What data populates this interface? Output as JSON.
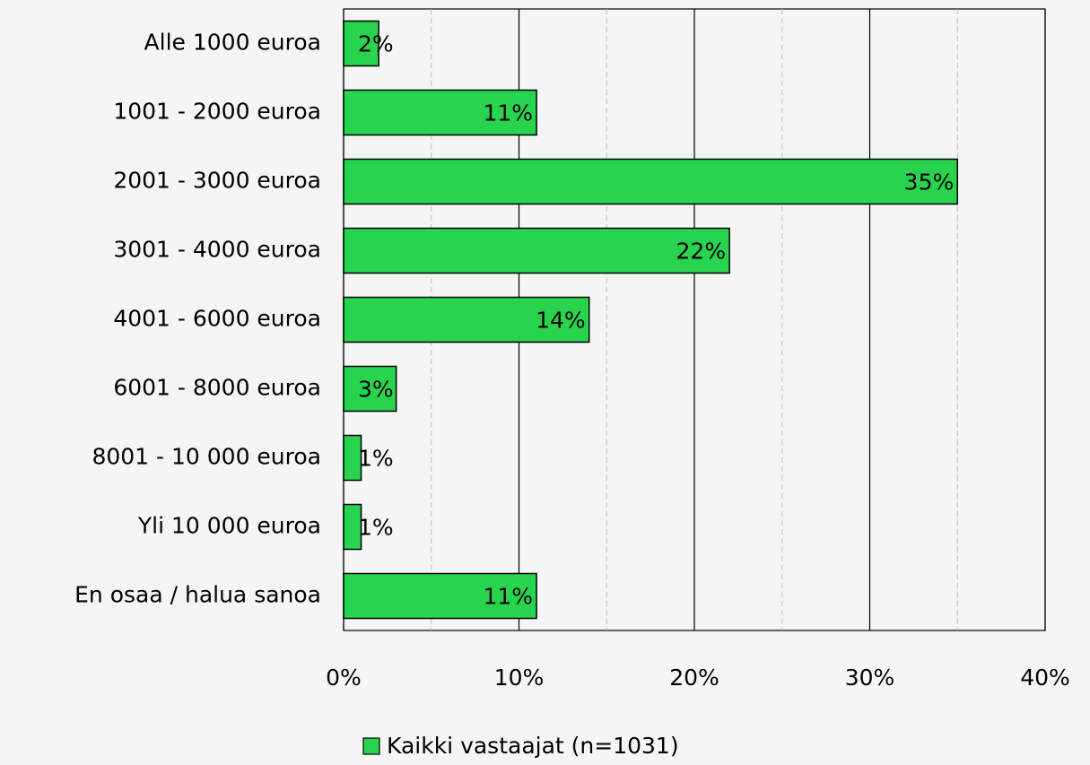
{
  "chart_data": {
    "type": "barh",
    "categories": [
      "Alle 1000 euroa",
      "1001 - 2000 euroa",
      "2001 - 3000 euroa",
      "3001 - 4000 euroa",
      "4001 - 6000 euroa",
      "6001 - 8000 euroa",
      "8001 - 10 000 euroa",
      "Yli 10 000 euroa",
      "En osaa / halua sanoa"
    ],
    "series": [
      {
        "name": "Kaikki vastaajat (n=1031)",
        "color": "#28d44e",
        "values": [
          2,
          11,
          35,
          22,
          14,
          3,
          1,
          1,
          11
        ],
        "value_labels": [
          "2%",
          "11%",
          "35%",
          "22%",
          "14%",
          "3%",
          "1%",
          "1%",
          "11%"
        ]
      }
    ],
    "xlim": [
      0,
      40
    ],
    "xticks": [
      {
        "value": 0,
        "label": "0%"
      },
      {
        "value": 10,
        "label": "10%"
      },
      {
        "value": 20,
        "label": "20%"
      },
      {
        "value": 30,
        "label": "30%"
      },
      {
        "value": 40,
        "label": "40%"
      }
    ],
    "xminor": [
      5,
      15,
      25,
      35
    ],
    "grid": true,
    "legend": "bottom"
  }
}
